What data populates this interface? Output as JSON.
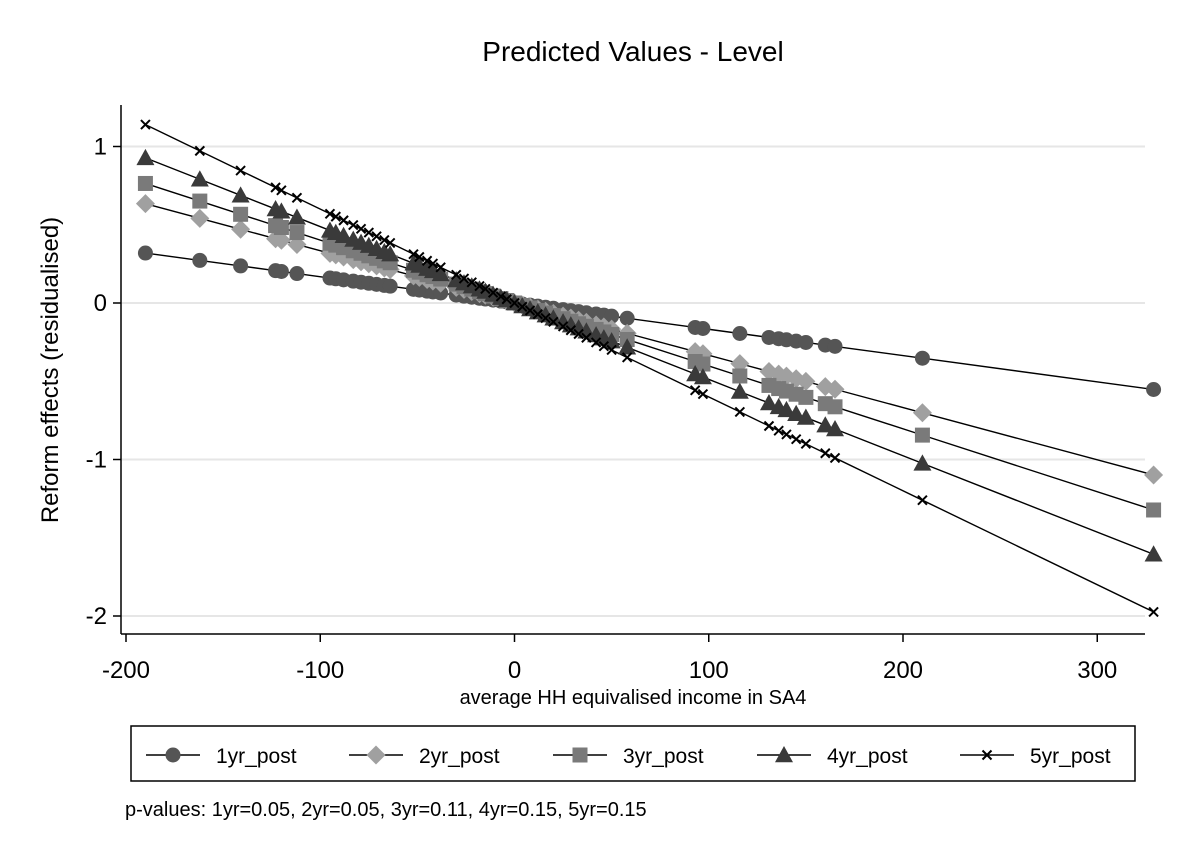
{
  "chart_data": {
    "type": "line",
    "title": "Predicted Values - Level",
    "xlabel": "average HH equivalised income in SA4",
    "ylabel": "Reform effects (residualised)",
    "xlim": [
      -210,
      340
    ],
    "ylim": [
      -2.1,
      1.25
    ],
    "xticks": [
      -200,
      -100,
      0,
      100,
      200,
      300
    ],
    "yticks": [
      1,
      0,
      -1,
      -2
    ],
    "grid": "horizontal",
    "legend_position": "bottom",
    "x": [
      -190,
      -162,
      -141,
      -123,
      -120,
      -112,
      -95,
      -92,
      -88,
      -83,
      -79,
      -75,
      -71,
      -67,
      -64,
      -52,
      -49,
      -45,
      -42,
      -38,
      -30,
      -26,
      -22,
      -18,
      -15,
      -11,
      -7,
      -4,
      0,
      4,
      8,
      12,
      16,
      20,
      25,
      29,
      33,
      37,
      42,
      46,
      50,
      58,
      93,
      97,
      116,
      131,
      136,
      140,
      145,
      150,
      160,
      165,
      210,
      329
    ],
    "series": [
      {
        "name": "1yr_post",
        "marker": "circle",
        "color": "#555555",
        "slope": -0.00168
      },
      {
        "name": "2yr_post",
        "marker": "diamond",
        "color": "#a0a0a0",
        "slope": -0.00334
      },
      {
        "name": "3yr_post",
        "marker": "square",
        "color": "#7a7a7a",
        "slope": -0.00402
      },
      {
        "name": "4yr_post",
        "marker": "triangle",
        "color": "#3a3a3a",
        "slope": -0.00488
      },
      {
        "name": "5yr_post",
        "marker": "x",
        "color": "#000000",
        "slope": -0.006
      }
    ],
    "note": "p-values: 1yr=0.05,  2yr=0.05,  3yr=0.11,  4yr=0.15,  5yr=0.15"
  }
}
